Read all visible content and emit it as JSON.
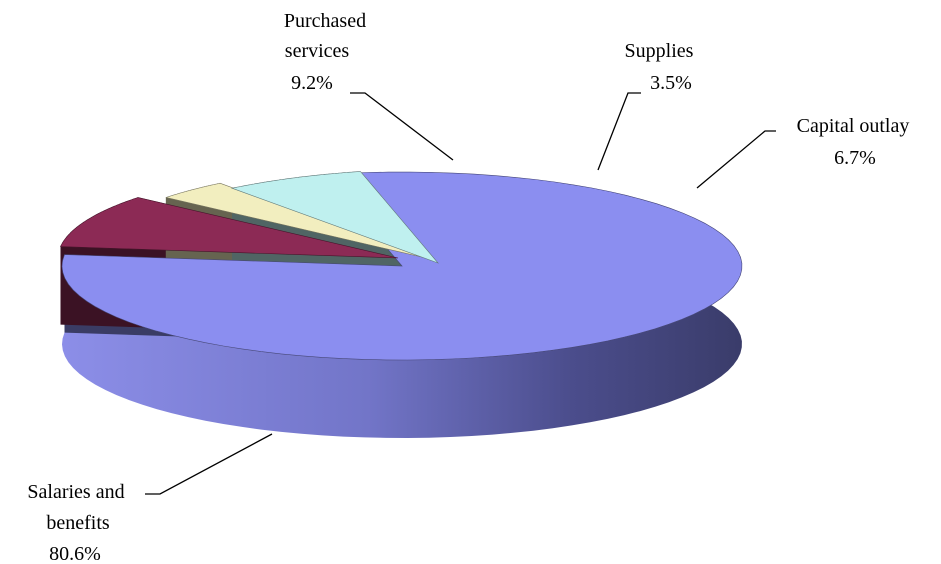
{
  "chart_data": {
    "type": "pie",
    "title": "",
    "style": "3d-exploded",
    "slices": [
      {
        "name_lines": [
          "Salaries and",
          "benefits"
        ],
        "value": 80.6,
        "label": "80.6%",
        "color": "#8b8ef0"
      },
      {
        "name_lines": [
          "Purchased",
          "services"
        ],
        "value": 9.2,
        "label": "9.2%",
        "color": "#8c2a55"
      },
      {
        "name_lines": [
          "Supplies"
        ],
        "value": 3.5,
        "label": "3.5%",
        "color": "#f2eebf"
      },
      {
        "name_lines": [
          "Capital outlay"
        ],
        "value": 6.7,
        "label": "6.7%",
        "color": "#bff0ef"
      }
    ]
  }
}
